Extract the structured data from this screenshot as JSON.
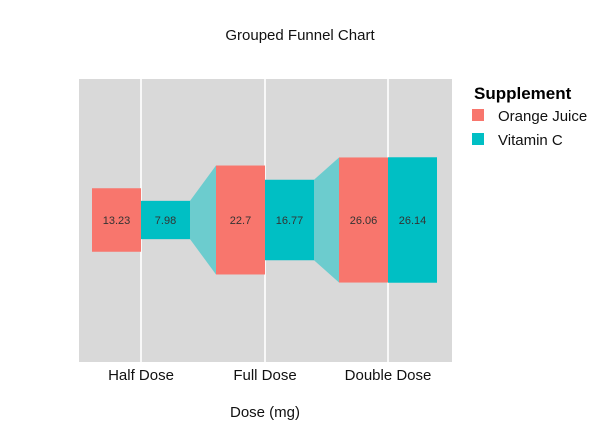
{
  "chart_data": {
    "type": "funnel",
    "title": "Grouped Funnel Chart",
    "xlabel": "Dose (mg)",
    "ylabel": "",
    "categories": [
      "Half Dose",
      "Full Dose",
      "Double Dose"
    ],
    "series": [
      {
        "name": "Orange Juice",
        "values": [
          13.23,
          22.7,
          26.06
        ],
        "color": "#F8766D"
      },
      {
        "name": "Vitamin C",
        "values": [
          7.98,
          16.77,
          26.14
        ],
        "color": "#00BFC4"
      }
    ],
    "legend": {
      "title": "Supplement",
      "placement": "right"
    },
    "panel_background": "#d9d9d9",
    "grid": true
  }
}
